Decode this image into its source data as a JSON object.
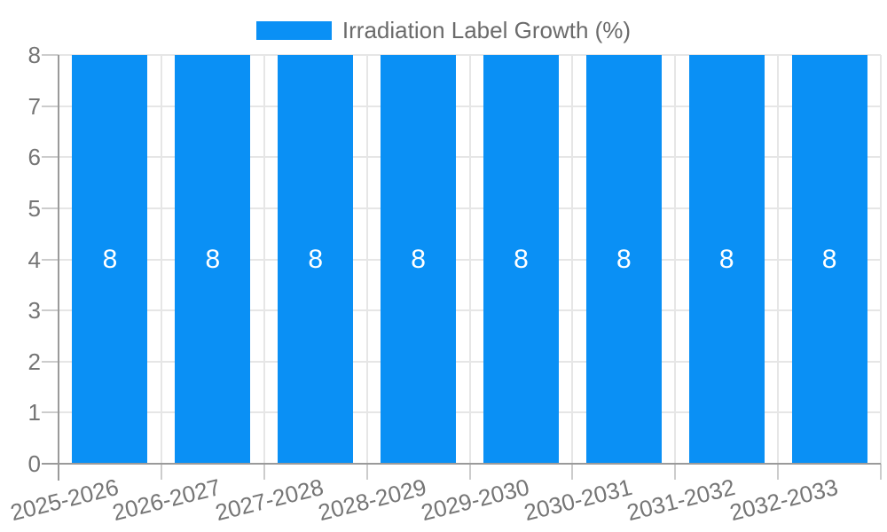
{
  "chart_data": {
    "type": "bar",
    "title": "Irradiation Label Growth (%)",
    "categories": [
      "2025-2026",
      "2026-2027",
      "2027-2028",
      "2028-2029",
      "2029-2030",
      "2030-2031",
      "2031-2032",
      "2032-2033"
    ],
    "series": [
      {
        "name": "Irradiation Label Growth (%)",
        "values": [
          8,
          8,
          8,
          8,
          8,
          8,
          8,
          8
        ]
      }
    ],
    "value_labels_shown": true,
    "xlabel": "",
    "ylabel": "",
    "ylim": [
      0,
      8
    ],
    "yticks": [
      0,
      1,
      2,
      3,
      4,
      5,
      6,
      7,
      8
    ],
    "grid": true,
    "legend_position": "top-center",
    "x_label_rotation_deg": -14,
    "colors": {
      "bar": "#0a90f5",
      "gridline": "#e6e6e6",
      "axis": "#9a9a9a",
      "tick": "#cccccc",
      "axis_label": "#757575",
      "title": "#6b6b6b",
      "value_label": "#ffffff",
      "background": "#ffffff"
    }
  }
}
